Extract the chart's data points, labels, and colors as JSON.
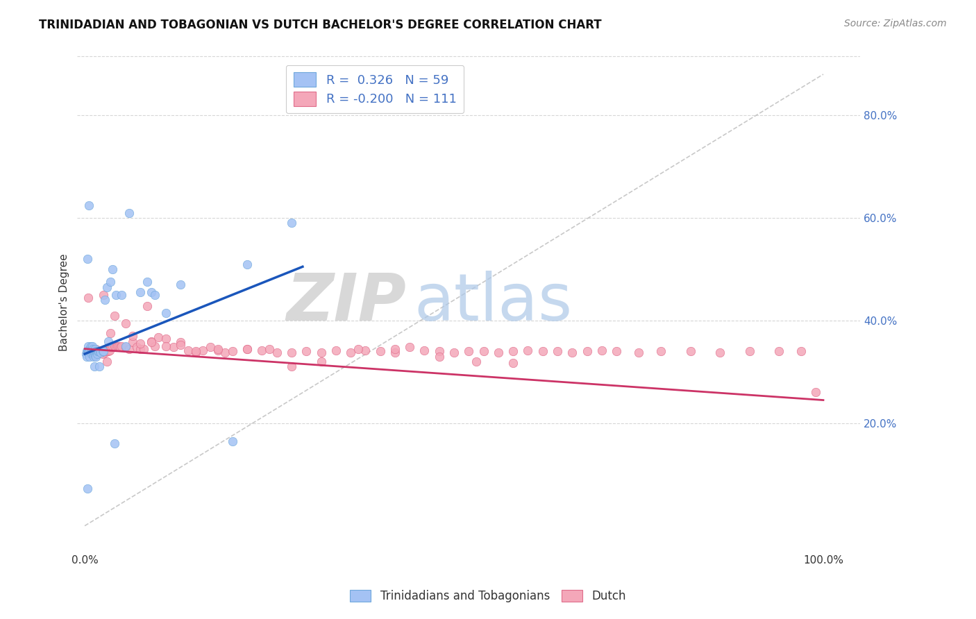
{
  "title": "TRINIDADIAN AND TOBAGONIAN VS DUTCH BACHELOR'S DEGREE CORRELATION CHART",
  "source": "Source: ZipAtlas.com",
  "ylabel": "Bachelor's Degree",
  "ytick_values": [
    0.2,
    0.4,
    0.6,
    0.8
  ],
  "ytick_labels": [
    "20.0%",
    "40.0%",
    "60.0%",
    "80.0%"
  ],
  "xtick_values": [
    0.0,
    1.0
  ],
  "xtick_labels": [
    "0.0%",
    "100.0%"
  ],
  "xlim": [
    -0.01,
    1.05
  ],
  "ylim": [
    -0.05,
    0.92
  ],
  "blue_color": "#a4c2f4",
  "pink_color": "#f4a7b9",
  "blue_edge_color": "#6fa8dc",
  "pink_edge_color": "#e06c8a",
  "blue_line_color": "#1a56bb",
  "pink_line_color": "#cc3366",
  "diag_color": "#bbbbbb",
  "grid_color": "#cccccc",
  "blue_line_x": [
    0.0,
    0.295
  ],
  "blue_line_y": [
    0.335,
    0.505
  ],
  "pink_line_x": [
    0.0,
    1.0
  ],
  "pink_line_y": [
    0.345,
    0.245
  ],
  "diag_line_x": [
    0.0,
    1.0
  ],
  "diag_line_y": [
    0.0,
    0.88
  ],
  "legend1_label": "R =  0.326   N = 59",
  "legend2_label": "R = -0.200   N = 111",
  "cat_label1": "Trinidadians and Tobagonians",
  "cat_label2": "Dutch",
  "title_fontsize": 12,
  "source_fontsize": 10,
  "tick_fontsize": 11,
  "legend_fontsize": 13,
  "ylabel_fontsize": 11,
  "marker_size": 80,
  "blue_points_x": [
    0.002,
    0.003,
    0.003,
    0.004,
    0.004,
    0.005,
    0.005,
    0.005,
    0.006,
    0.006,
    0.007,
    0.007,
    0.008,
    0.008,
    0.009,
    0.009,
    0.01,
    0.01,
    0.01,
    0.011,
    0.011,
    0.012,
    0.012,
    0.013,
    0.013,
    0.014,
    0.014,
    0.015,
    0.015,
    0.016,
    0.017,
    0.017,
    0.018,
    0.019,
    0.02,
    0.021,
    0.022,
    0.024,
    0.025,
    0.027,
    0.03,
    0.032,
    0.035,
    0.038,
    0.04,
    0.042,
    0.05,
    0.055,
    0.06,
    0.075,
    0.085,
    0.09,
    0.095,
    0.11,
    0.13,
    0.2,
    0.22,
    0.28,
    0.004
  ],
  "blue_points_y": [
    0.335,
    0.34,
    0.33,
    0.34,
    0.073,
    0.35,
    0.34,
    0.338,
    0.625,
    0.34,
    0.345,
    0.33,
    0.35,
    0.34,
    0.345,
    0.335,
    0.34,
    0.35,
    0.34,
    0.335,
    0.345,
    0.33,
    0.34,
    0.34,
    0.31,
    0.345,
    0.332,
    0.34,
    0.33,
    0.34,
    0.34,
    0.335,
    0.34,
    0.34,
    0.31,
    0.34,
    0.338,
    0.34,
    0.34,
    0.44,
    0.465,
    0.36,
    0.475,
    0.5,
    0.16,
    0.45,
    0.45,
    0.35,
    0.61,
    0.455,
    0.475,
    0.455,
    0.45,
    0.415,
    0.47,
    0.165,
    0.51,
    0.59,
    0.52
  ],
  "pink_points_x": [
    0.004,
    0.005,
    0.006,
    0.007,
    0.008,
    0.009,
    0.01,
    0.011,
    0.012,
    0.013,
    0.014,
    0.015,
    0.016,
    0.017,
    0.018,
    0.019,
    0.02,
    0.021,
    0.022,
    0.023,
    0.024,
    0.025,
    0.026,
    0.027,
    0.028,
    0.03,
    0.032,
    0.034,
    0.036,
    0.038,
    0.04,
    0.042,
    0.044,
    0.046,
    0.048,
    0.05,
    0.055,
    0.06,
    0.065,
    0.07,
    0.075,
    0.08,
    0.085,
    0.09,
    0.095,
    0.1,
    0.11,
    0.12,
    0.13,
    0.14,
    0.15,
    0.16,
    0.17,
    0.18,
    0.19,
    0.2,
    0.22,
    0.24,
    0.26,
    0.28,
    0.3,
    0.32,
    0.34,
    0.36,
    0.38,
    0.4,
    0.42,
    0.44,
    0.46,
    0.48,
    0.5,
    0.52,
    0.54,
    0.56,
    0.58,
    0.6,
    0.62,
    0.64,
    0.66,
    0.68,
    0.7,
    0.72,
    0.75,
    0.78,
    0.82,
    0.86,
    0.9,
    0.94,
    0.97,
    0.99,
    0.025,
    0.03,
    0.035,
    0.04,
    0.055,
    0.065,
    0.075,
    0.09,
    0.11,
    0.13,
    0.15,
    0.18,
    0.22,
    0.25,
    0.28,
    0.32,
    0.37,
    0.42,
    0.48,
    0.53,
    0.58
  ],
  "pink_points_y": [
    0.34,
    0.445,
    0.342,
    0.338,
    0.34,
    0.34,
    0.335,
    0.34,
    0.34,
    0.338,
    0.34,
    0.345,
    0.34,
    0.335,
    0.34,
    0.338,
    0.34,
    0.34,
    0.338,
    0.342,
    0.335,
    0.34,
    0.34,
    0.338,
    0.342,
    0.34,
    0.34,
    0.342,
    0.348,
    0.35,
    0.35,
    0.348,
    0.35,
    0.35,
    0.348,
    0.35,
    0.348,
    0.345,
    0.358,
    0.348,
    0.345,
    0.345,
    0.428,
    0.36,
    0.35,
    0.368,
    0.365,
    0.348,
    0.358,
    0.342,
    0.338,
    0.342,
    0.348,
    0.342,
    0.338,
    0.34,
    0.345,
    0.342,
    0.338,
    0.338,
    0.34,
    0.338,
    0.342,
    0.338,
    0.342,
    0.34,
    0.338,
    0.348,
    0.342,
    0.34,
    0.338,
    0.34,
    0.34,
    0.338,
    0.34,
    0.342,
    0.34,
    0.34,
    0.338,
    0.34,
    0.342,
    0.34,
    0.338,
    0.34,
    0.34,
    0.338,
    0.34,
    0.34,
    0.34,
    0.26,
    0.45,
    0.32,
    0.375,
    0.41,
    0.395,
    0.37,
    0.355,
    0.358,
    0.35,
    0.352,
    0.34,
    0.345,
    0.345,
    0.345,
    0.31,
    0.32,
    0.345,
    0.345,
    0.33,
    0.32,
    0.318
  ]
}
